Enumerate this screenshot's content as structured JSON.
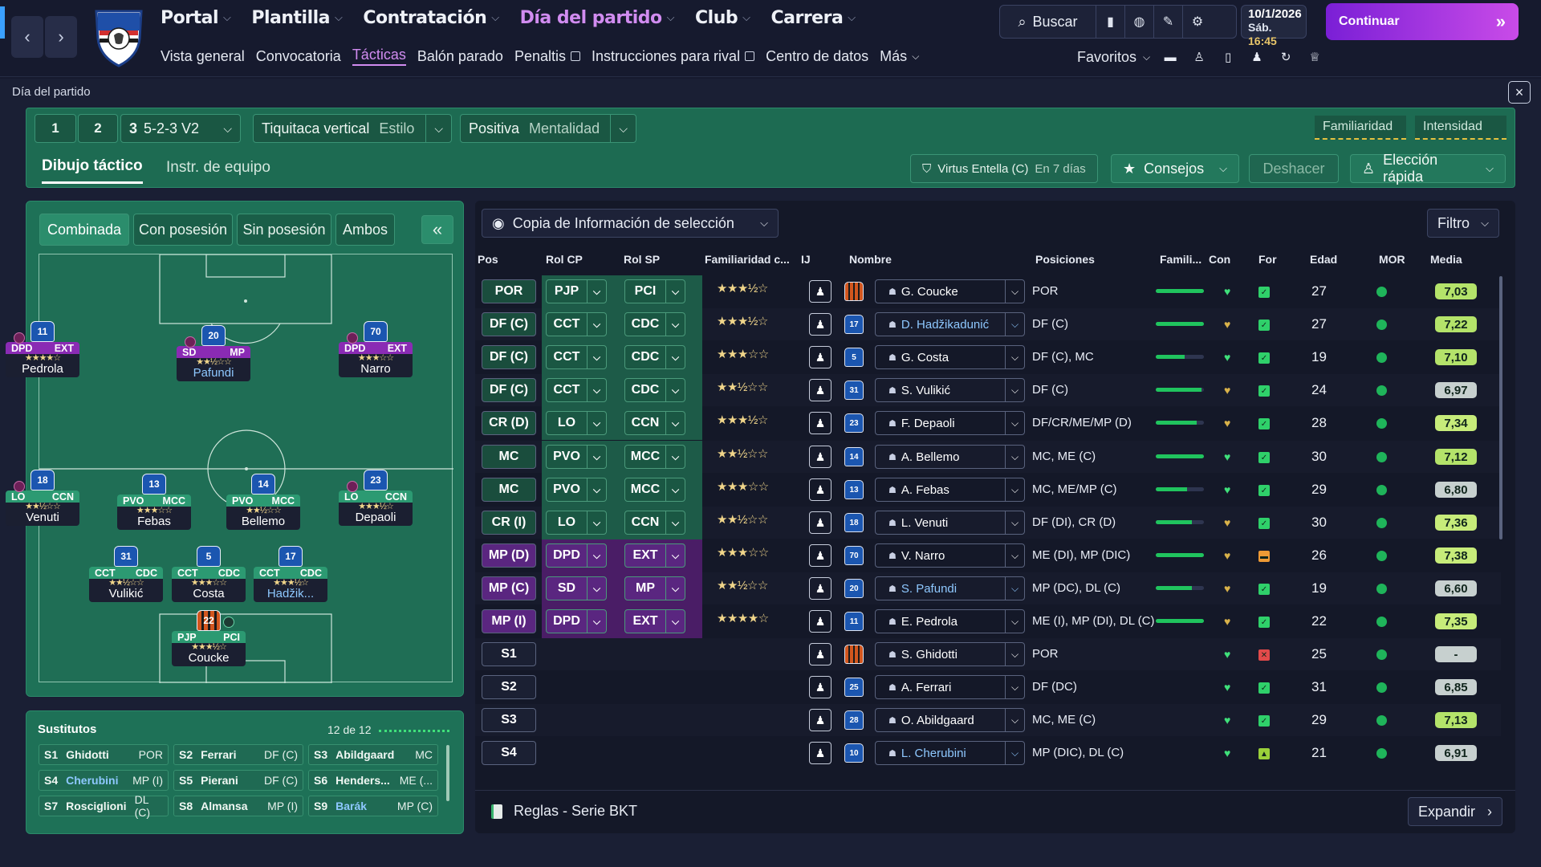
{
  "topnav": {
    "items": [
      {
        "label": "Portal"
      },
      {
        "label": "Plantilla"
      },
      {
        "label": "Contratación"
      },
      {
        "label": "Día del partido"
      },
      {
        "label": "Club"
      },
      {
        "label": "Carrera"
      }
    ],
    "subitems": [
      "Vista general",
      "Convocatoria",
      "Tácticas",
      "Balón parado",
      "Penaltis",
      "Instrucciones para rival",
      "Centro de datos",
      "Más"
    ],
    "search_label": "Buscar",
    "date": "10/1/2026",
    "day": "Sáb.",
    "time": "16:45",
    "continue_label": "Continuar",
    "favorites_label": "Favoritos"
  },
  "match": {
    "breadcrumb": "Día del partido",
    "tactic_tabs": [
      "1",
      "2",
      "3"
    ],
    "formation": "5-2-3 V2",
    "style_value": "Tiquitaca vertical",
    "style_label": "Estilo",
    "mentality_value": "Positiva",
    "mentality_label": "Mentalidad",
    "familiarity_label": "Familiaridad",
    "intensity_label": "Intensidad",
    "subtabs": [
      "Dibujo táctico",
      "Instr. de equipo"
    ],
    "next_opponent": "Virtus Entella (C)",
    "next_opponent_when": "En 7 días",
    "advice_label": "Consejos",
    "undo_label": "Deshacer",
    "quick_pick_label": "Elección rápida"
  },
  "pitch": {
    "tabs": [
      "Combinada",
      "Con posesión",
      "Sin posesión",
      "Ambos"
    ],
    "collapse_label": "«",
    "players": [
      {
        "num": "11",
        "r1": "DPD",
        "r2": "EXT",
        "stars": "★★★★☆",
        "name": "Pedrola",
        "color": "purple"
      },
      {
        "num": "20",
        "r1": "SD",
        "r2": "MP",
        "stars": "★★½☆☆",
        "name": "Pafundi",
        "color": "purple"
      },
      {
        "num": "70",
        "r1": "DPD",
        "r2": "EXT",
        "stars": "★★★☆☆",
        "name": "Narro",
        "color": "purple"
      },
      {
        "num": "18",
        "r1": "LO",
        "r2": "CCN",
        "stars": "★★½☆☆",
        "name": "Venuti",
        "color": "green"
      },
      {
        "num": "13",
        "r1": "PVO",
        "r2": "MCC",
        "stars": "★★★☆☆",
        "name": "Febas",
        "color": "green"
      },
      {
        "num": "14",
        "r1": "PVO",
        "r2": "MCC",
        "stars": "★★½☆☆",
        "name": "Bellemo",
        "color": "green"
      },
      {
        "num": "23",
        "r1": "LO",
        "r2": "CCN",
        "stars": "★★★½☆",
        "name": "Depaoli",
        "color": "green"
      },
      {
        "num": "31",
        "r1": "CCT",
        "r2": "CDC",
        "stars": "★★½☆☆",
        "name": "Vulikić",
        "color": "green"
      },
      {
        "num": "5",
        "r1": "CCT",
        "r2": "CDC",
        "stars": "★★★☆☆",
        "name": "Costa",
        "color": "green"
      },
      {
        "num": "17",
        "r1": "CCT",
        "r2": "CDC",
        "stars": "★★★½☆",
        "name": "Hadžik...",
        "color": "green"
      },
      {
        "num": "22",
        "r1": "PJP",
        "r2": "PCI",
        "stars": "★★★½☆",
        "name": "Coucke",
        "color": "green"
      }
    ]
  },
  "subs": {
    "title": "Sustitutos",
    "count": "12 de 12",
    "list": [
      {
        "slot": "S1",
        "name": "Ghidotti",
        "pos": "POR"
      },
      {
        "slot": "S2",
        "name": "Ferrari",
        "pos": "DF (C)"
      },
      {
        "slot": "S3",
        "name": "Abildgaard",
        "pos": "MC"
      },
      {
        "slot": "S4",
        "name": "Cherubini",
        "pos": "MP (I)"
      },
      {
        "slot": "S5",
        "name": "Pierani",
        "pos": "DF (C)"
      },
      {
        "slot": "S6",
        "name": "Henders...",
        "pos": "ME (..."
      },
      {
        "slot": "S7",
        "name": "Rosciglioni",
        "pos": "DL (C)"
      },
      {
        "slot": "S8",
        "name": "Almansa",
        "pos": "MP (I)"
      },
      {
        "slot": "S9",
        "name": "Barák",
        "pos": "MP (C)"
      }
    ]
  },
  "table": {
    "view_label": "Copia de Información de selección",
    "filter_label": "Filtro",
    "headers": {
      "pos": "Pos",
      "rolcp": "Rol CP",
      "rolsp": "Rol SP",
      "fam": "Familiaridad c...",
      "ij": "IJ",
      "name": "Nombre",
      "positions": "Posiciones",
      "famil": "Famili...",
      "con": "Con",
      "for": "For",
      "age": "Edad",
      "mor": "MOR",
      "media": "Media"
    },
    "rows": [
      {
        "pos": "POR",
        "cp": "PJP",
        "sp": "PCI",
        "stars": "★★★½☆",
        "num": "",
        "name": "G. Coucke",
        "positions": "POR",
        "fam": 100,
        "age": "27",
        "media": "7,03",
        "gk": true
      },
      {
        "pos": "DF (C)",
        "cp": "CCT",
        "sp": "CDC",
        "stars": "★★★½☆",
        "num": "17",
        "name": "D. Hadžikadunić",
        "positions": "DF (C)",
        "fam": 100,
        "age": "27",
        "media": "7,22",
        "blue": true
      },
      {
        "pos": "DF (C)",
        "cp": "CCT",
        "sp": "CDC",
        "stars": "★★★☆☆",
        "num": "5",
        "name": "G. Costa",
        "positions": "DF (C), MC",
        "fam": 60,
        "age": "19",
        "media": "7,10"
      },
      {
        "pos": "DF (C)",
        "cp": "CCT",
        "sp": "CDC",
        "stars": "★★½☆☆",
        "num": "31",
        "name": "S. Vulikić",
        "positions": "DF (C)",
        "fam": 95,
        "age": "24",
        "media": "6,97"
      },
      {
        "pos": "CR (D)",
        "cp": "LO",
        "sp": "CCN",
        "stars": "★★★½☆",
        "num": "23",
        "name": "F. Depaoli",
        "positions": "DF/CR/ME/MP (D)",
        "fam": 85,
        "age": "28",
        "media": "7,34"
      },
      {
        "pos": "MC",
        "cp": "PVO",
        "sp": "MCC",
        "stars": "★★½☆☆",
        "num": "14",
        "name": "A. Bellemo",
        "positions": "MC, ME (C)",
        "fam": 100,
        "age": "30",
        "media": "7,12"
      },
      {
        "pos": "MC",
        "cp": "PVO",
        "sp": "MCC",
        "stars": "★★★☆☆",
        "num": "13",
        "name": "A. Febas",
        "positions": "MC, ME/MP (C)",
        "fam": 65,
        "age": "29",
        "media": "6,80"
      },
      {
        "pos": "CR (I)",
        "cp": "LO",
        "sp": "CCN",
        "stars": "★★½☆☆",
        "num": "18",
        "name": "L. Venuti",
        "positions": "DF (DI), CR (D)",
        "fam": 75,
        "age": "30",
        "media": "7,36"
      },
      {
        "pos": "MP (D)",
        "cp": "DPD",
        "sp": "EXT",
        "stars": "★★★☆☆",
        "num": "70",
        "name": "V. Narro",
        "positions": "ME (DI), MP (DIC)",
        "fam": 100,
        "age": "26",
        "media": "7,38",
        "purple": true
      },
      {
        "pos": "MP (C)",
        "cp": "SD",
        "sp": "MP",
        "stars": "★★½☆☆",
        "num": "20",
        "name": "S. Pafundi",
        "positions": "MP (DC), DL (C)",
        "fam": 75,
        "age": "19",
        "media": "6,60",
        "purple": true,
        "blue": true
      },
      {
        "pos": "MP (I)",
        "cp": "DPD",
        "sp": "EXT",
        "stars": "★★★★☆",
        "num": "11",
        "name": "E. Pedrola",
        "positions": "ME (I), MP (DI), DL (C)",
        "fam": 100,
        "age": "22",
        "media": "7,35",
        "purple": true
      },
      {
        "pos": "S1",
        "cp": "",
        "sp": "",
        "stars": "",
        "num": "",
        "name": "S. Ghidotti",
        "positions": "POR",
        "fam": 0,
        "age": "25",
        "media": "-",
        "gk": true
      },
      {
        "pos": "S2",
        "cp": "",
        "sp": "",
        "stars": "",
        "num": "25",
        "name": "A. Ferrari",
        "positions": "DF (DC)",
        "fam": 0,
        "age": "31",
        "media": "6,85"
      },
      {
        "pos": "S3",
        "cp": "",
        "sp": "",
        "stars": "",
        "num": "28",
        "name": "O. Abildgaard",
        "positions": "MC, ME (C)",
        "fam": 0,
        "age": "29",
        "media": "7,13"
      },
      {
        "pos": "S4",
        "cp": "",
        "sp": "",
        "stars": "",
        "num": "10",
        "name": "L. Cherubini",
        "positions": "MP (DIC), DL (C)",
        "fam": 0,
        "age": "21",
        "media": "6,91",
        "blue": true
      }
    ],
    "footer_label": "Reglas - Serie BKT",
    "expand_label": "Expandir"
  }
}
